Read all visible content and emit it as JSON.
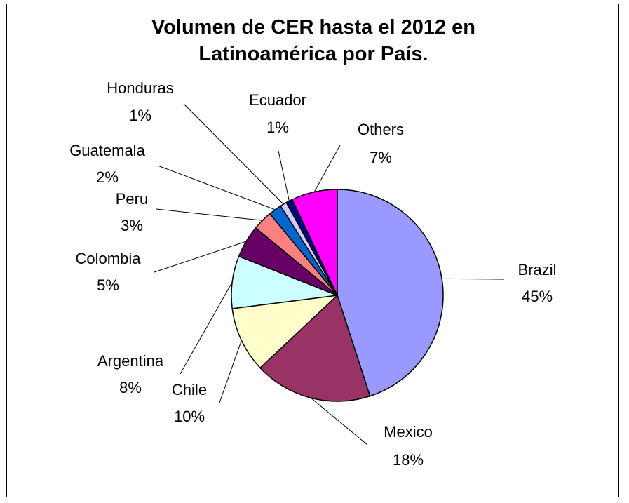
{
  "chart_data": {
    "type": "pie",
    "title_lines": [
      "Volumen de CER hasta el 2012 en",
      "Latinoamérica por País."
    ],
    "slices": [
      {
        "name": "Brazil",
        "label": "45%",
        "value": 45,
        "color": "#9999ff"
      },
      {
        "name": "Mexico",
        "label": "18%",
        "value": 18,
        "color": "#993366"
      },
      {
        "name": "Chile",
        "label": "10%",
        "value": 10,
        "color": "#ffffcc"
      },
      {
        "name": "Argentina",
        "label": "8%",
        "value": 8,
        "color": "#ccffff"
      },
      {
        "name": "Colombia",
        "label": "5%",
        "value": 5,
        "color": "#660066"
      },
      {
        "name": "Peru",
        "label": "3%",
        "value": 3,
        "color": "#ff8080"
      },
      {
        "name": "Guatemala",
        "label": "2%",
        "value": 2,
        "color": "#0066cc"
      },
      {
        "name": "Honduras",
        "label": "1%",
        "value": 1,
        "color": "#ccccff"
      },
      {
        "name": "Ecuador",
        "label": "1%",
        "value": 1,
        "color": "#000080"
      },
      {
        "name": "Others",
        "label": "7%",
        "value": 7,
        "color": "#ff00ff"
      }
    ],
    "legend": "none"
  }
}
